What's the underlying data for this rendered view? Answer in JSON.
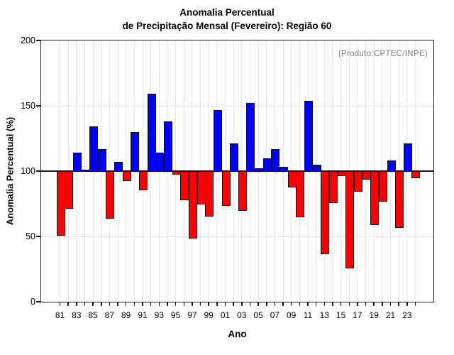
{
  "title": {
    "line1": "Anomalia Percentual",
    "line2": "de Precipitação Mensal (Fevereiro): Região 60"
  },
  "chart_data": {
    "type": "bar",
    "title": "Anomalia Percentual de Precipitação Mensal (Fevereiro): Região 60",
    "annotation": "(Produto:CPTEC/INPE)",
    "xlabel": "Ano",
    "ylabel": "Anomalia Percentual (%)",
    "ylim": [
      0,
      200
    ],
    "yticks": [
      0,
      50,
      100,
      150,
      200
    ],
    "baseline": 100,
    "grid": "dotted light gray, vertical per year and horizontal at 50/150",
    "legend": "none",
    "positive_color": "#0000FF",
    "negative_color": "#FF0000",
    "bar_border_color": "#101010",
    "x_tick_label_step": 2,
    "categories": [
      "81",
      "82",
      "83",
      "84",
      "85",
      "86",
      "87",
      "88",
      "89",
      "90",
      "91",
      "92",
      "93",
      "94",
      "95",
      "96",
      "97",
      "98",
      "99",
      "00",
      "01",
      "02",
      "03",
      "04",
      "05",
      "06",
      "07",
      "08",
      "09",
      "10",
      "11",
      "12",
      "13",
      "14",
      "15",
      "16",
      "17",
      "18",
      "19",
      "20",
      "21",
      "22",
      "23",
      "24"
    ],
    "values": [
      51,
      72,
      114,
      101,
      134,
      117,
      64,
      107,
      93,
      130,
      86,
      159,
      114,
      138,
      98,
      78,
      49,
      75,
      66,
      147,
      74,
      121,
      70,
      152,
      102,
      110,
      117,
      103,
      88,
      65,
      154,
      105,
      37,
      76,
      97,
      26,
      85,
      94,
      59,
      77,
      108,
      57,
      121,
      95
    ]
  }
}
